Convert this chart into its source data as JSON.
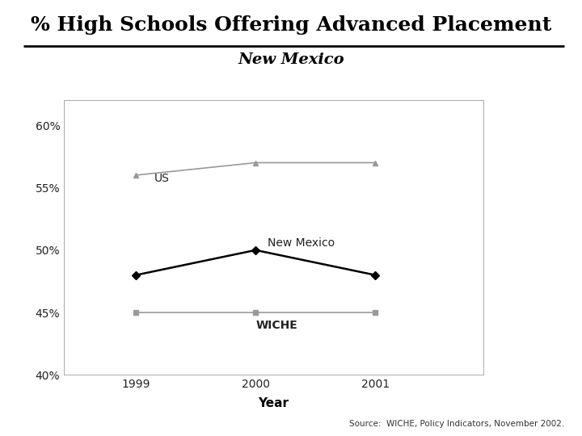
{
  "title": "% High Schools Offering Advanced Placement",
  "subtitle": "New Mexico",
  "xlabel": "Year",
  "years": [
    1999,
    2000,
    2001
  ],
  "us_values": [
    56,
    57,
    57
  ],
  "nm_values": [
    48,
    50,
    48
  ],
  "wiche_values": [
    45,
    45,
    45
  ],
  "ylim": [
    40,
    62
  ],
  "yticks": [
    40,
    45,
    50,
    55,
    60
  ],
  "ytick_labels": [
    "40%",
    "45%",
    "50%",
    "55%",
    "60%"
  ],
  "us_color": "#999999",
  "nm_color": "#000000",
  "wiche_color": "#999999",
  "source_text": "Source:  WICHE, Policy Indicators, November 2002.",
  "bg_color": "#ffffff",
  "title_fontsize": 18,
  "subtitle_fontsize": 14,
  "tick_fontsize": 10,
  "label_fontsize": 11,
  "annotation_fontsize": 10
}
